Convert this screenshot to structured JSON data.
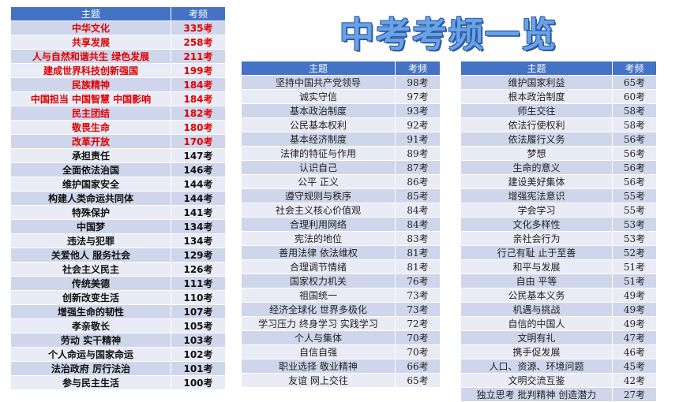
{
  "page_title": "中考考频一览",
  "headers": {
    "topic": "主题",
    "freq": "考频"
  },
  "table1": [
    {
      "topic": "中华文化",
      "freq": "335考",
      "hl": true
    },
    {
      "topic": "共享发展",
      "freq": "258考",
      "hl": true
    },
    {
      "topic": "人与自然和谐共生  绿色发展",
      "freq": "211考",
      "hl": true
    },
    {
      "topic": "建成世界科技创新强国",
      "freq": "199考",
      "hl": true
    },
    {
      "topic": "民族精神",
      "freq": "184考",
      "hl": true
    },
    {
      "topic": "中国担当  中国智慧  中国影响",
      "freq": "184考",
      "hl": true
    },
    {
      "topic": "民主团结",
      "freq": "182考",
      "hl": true
    },
    {
      "topic": "敬畏生命",
      "freq": "180考",
      "hl": true
    },
    {
      "topic": "改革开放",
      "freq": "170考",
      "hl": true
    },
    {
      "topic": "承担责任",
      "freq": "147考"
    },
    {
      "topic": "全面依法治国",
      "freq": "146考"
    },
    {
      "topic": "维护国家安全",
      "freq": "144考"
    },
    {
      "topic": "构建人类命运共同体",
      "freq": "144考"
    },
    {
      "topic": "特殊保护",
      "freq": "141考"
    },
    {
      "topic": "中国梦",
      "freq": "134考"
    },
    {
      "topic": "违法与犯罪",
      "freq": "134考"
    },
    {
      "topic": "关爱他人  服务社会",
      "freq": "129考"
    },
    {
      "topic": "社会主义民主",
      "freq": "126考"
    },
    {
      "topic": "传统美德",
      "freq": "111考"
    },
    {
      "topic": "创新改变生活",
      "freq": "110考"
    },
    {
      "topic": "增强生命的韧性",
      "freq": "107考"
    },
    {
      "topic": "孝亲敬长",
      "freq": "105考"
    },
    {
      "topic": "劳动    实干精神",
      "freq": "103考"
    },
    {
      "topic": "个人命运与国家命运",
      "freq": "102考"
    },
    {
      "topic": "法治政府  厉行法治",
      "freq": "101考"
    },
    {
      "topic": "参与民主生活",
      "freq": "100考"
    }
  ],
  "table2": [
    {
      "topic": "坚持中国共产党领导",
      "freq": "98考"
    },
    {
      "topic": "诚实守信",
      "freq": "97考"
    },
    {
      "topic": "基本政治制度",
      "freq": "93考"
    },
    {
      "topic": "公民基本权利",
      "freq": "92考"
    },
    {
      "topic": "基本经济制度",
      "freq": "91考"
    },
    {
      "topic": "法律的特征与作用",
      "freq": "89考"
    },
    {
      "topic": "认识自己",
      "freq": "87考"
    },
    {
      "topic": "公平  正义",
      "freq": "86考"
    },
    {
      "topic": "遵守规则与秩序",
      "freq": "85考"
    },
    {
      "topic": "社会主义核心价值观",
      "freq": "84考"
    },
    {
      "topic": "合理利用网络",
      "freq": "84考"
    },
    {
      "topic": "宪法的地位",
      "freq": "83考"
    },
    {
      "topic": "善用法律  依法维权",
      "freq": "81考"
    },
    {
      "topic": "合理调节情绪",
      "freq": "81考"
    },
    {
      "topic": "国家权力机关",
      "freq": "76考"
    },
    {
      "topic": "祖国统一",
      "freq": "73考"
    },
    {
      "topic": "经济全球化  世界多极化",
      "freq": "73考"
    },
    {
      "topic": "学习压力  终身学习  实践学习",
      "freq": "72考"
    },
    {
      "topic": "个人与集体",
      "freq": "70考"
    },
    {
      "topic": "自信自强",
      "freq": "70考"
    },
    {
      "topic": "职业选择  敬业精神",
      "freq": "66考"
    },
    {
      "topic": "友谊  网上交往",
      "freq": "65考"
    }
  ],
  "table3": [
    {
      "topic": "维护国家利益",
      "freq": "65考"
    },
    {
      "topic": "根本政治制度",
      "freq": "60考"
    },
    {
      "topic": "师生交往",
      "freq": "58考"
    },
    {
      "topic": "依法行使权利",
      "freq": "58考"
    },
    {
      "topic": "依法履行义务",
      "freq": "56考"
    },
    {
      "topic": "梦想",
      "freq": "56考"
    },
    {
      "topic": "生命的意义",
      "freq": "56考"
    },
    {
      "topic": "建设美好集体",
      "freq": "56考"
    },
    {
      "topic": "增强宪法意识",
      "freq": "55考"
    },
    {
      "topic": "学会学习",
      "freq": "55考"
    },
    {
      "topic": "文化多样性",
      "freq": "53考"
    },
    {
      "topic": "亲社会行为",
      "freq": "53考"
    },
    {
      "topic": "行己有耻  止于至善",
      "freq": "52考"
    },
    {
      "topic": "和平与发展",
      "freq": "51考"
    },
    {
      "topic": "自由  平等",
      "freq": "51考"
    },
    {
      "topic": "公民基本义务",
      "freq": "49考"
    },
    {
      "topic": "机遇与挑战",
      "freq": "49考"
    },
    {
      "topic": "自信的中国人",
      "freq": "49考"
    },
    {
      "topic": "文明有礼",
      "freq": "47考"
    },
    {
      "topic": "携手促发展",
      "freq": "46考"
    },
    {
      "topic": "人口、资源、环境问题",
      "freq": "45考"
    },
    {
      "topic": "文明交流互鉴",
      "freq": "42考"
    },
    {
      "topic": "独立思考  批判精神  创造潜力",
      "freq": "27考"
    }
  ]
}
